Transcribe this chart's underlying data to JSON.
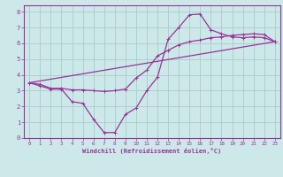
{
  "xlabel": "Windchill (Refroidissement éolien,°C)",
  "ylabel": "",
  "bg_color": "#cce8e8",
  "grid_color": "#aacccc",
  "line_color": "#993399",
  "xlim": [
    -0.5,
    23.5
  ],
  "ylim": [
    0,
    8.4
  ],
  "xticks": [
    0,
    1,
    2,
    3,
    4,
    5,
    6,
    7,
    8,
    9,
    10,
    11,
    12,
    13,
    14,
    15,
    16,
    17,
    18,
    19,
    20,
    21,
    22,
    23
  ],
  "yticks": [
    0,
    1,
    2,
    3,
    4,
    5,
    6,
    7,
    8
  ],
  "line1_x": [
    0,
    1,
    2,
    3,
    4,
    5,
    6,
    7,
    8,
    9,
    10,
    11,
    12,
    13,
    14,
    15,
    16,
    17,
    18,
    19,
    20,
    21,
    22,
    23
  ],
  "line1_y": [
    3.5,
    3.3,
    3.1,
    3.1,
    2.3,
    2.2,
    1.2,
    0.35,
    0.35,
    1.5,
    1.9,
    3.0,
    3.85,
    6.25,
    7.0,
    7.8,
    7.85,
    6.85,
    6.6,
    6.4,
    6.35,
    6.4,
    6.35,
    6.1
  ],
  "line2_x": [
    0,
    1,
    2,
    3,
    4,
    5,
    6,
    7,
    8,
    9,
    10,
    11,
    12,
    13,
    14,
    15,
    16,
    17,
    18,
    19,
    20,
    21,
    22,
    23
  ],
  "line2_y": [
    3.5,
    3.4,
    3.15,
    3.15,
    3.05,
    3.05,
    3.0,
    2.95,
    3.0,
    3.1,
    3.8,
    4.3,
    5.2,
    5.55,
    5.9,
    6.1,
    6.2,
    6.35,
    6.4,
    6.5,
    6.55,
    6.6,
    6.55,
    6.1
  ],
  "line3_x": [
    0,
    23
  ],
  "line3_y": [
    3.5,
    6.1
  ]
}
